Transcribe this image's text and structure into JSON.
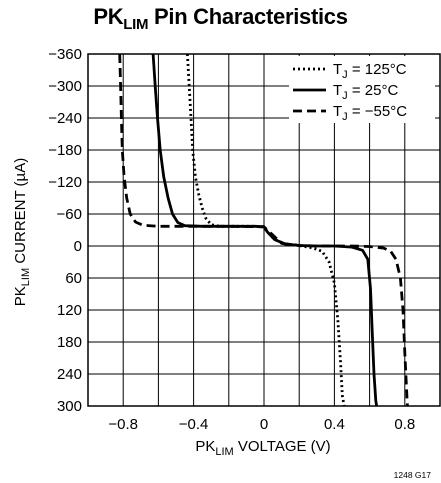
{
  "title": {
    "main": "PK",
    "sub": "LIM",
    "rest": " Pin Characteristics"
  },
  "ylabel": {
    "pre": "PK",
    "sub": "LIM",
    "post": " CURRENT (µA)"
  },
  "xlabel": {
    "pre": "PK",
    "sub": "LIM",
    "post": " VOLTAGE (V)"
  },
  "figure_code": "1248 G17",
  "chart_data": {
    "type": "line",
    "title": "PKLIM Pin Characteristics",
    "xlabel": "PKLIM VOLTAGE (V)",
    "ylabel": "PKLIM CURRENT (µA)",
    "xlim": [
      -1.0,
      1.0
    ],
    "ylim": [
      -360,
      300
    ],
    "y_inverted": true,
    "grid": true,
    "legend_position": "top-right",
    "x_ticks": [
      -0.8,
      -0.4,
      0,
      0.4,
      0.8
    ],
    "x_tick_labels": [
      "−0.8",
      "−0.4",
      "0",
      "0.4",
      "0.8"
    ],
    "y_ticks": [
      -360,
      -300,
      -240,
      -180,
      -120,
      -60,
      0,
      60,
      120,
      180,
      240,
      300
    ],
    "y_tick_labels": [
      "−360",
      "−300",
      "−240",
      "−180",
      "−120",
      "−60",
      "0",
      "60",
      "120",
      "180",
      "240",
      "300"
    ],
    "series": [
      {
        "name": "TJ = 125°C",
        "label_pre": "T",
        "label_sub": "J",
        "label_post": " = 125°C",
        "style": "dotted",
        "x": [
          -0.435,
          -0.425,
          -0.415,
          -0.405,
          -0.39,
          -0.37,
          -0.35,
          -0.33,
          -0.3,
          -0.25,
          -0.15,
          -0.05,
          0.0,
          0.02,
          0.06,
          0.12,
          0.2,
          0.28,
          0.33,
          0.37,
          0.4,
          0.42,
          0.435,
          0.445,
          0.455
        ],
        "y": [
          -360,
          -300,
          -240,
          -180,
          -130,
          -95,
          -70,
          -52,
          -40,
          -37,
          -37,
          -37,
          -36,
          -26,
          -12,
          -4,
          -1,
          4,
          10,
          30,
          70,
          140,
          220,
          280,
          300
        ]
      },
      {
        "name": "TJ = 25°C",
        "label_pre": "T",
        "label_sub": "J",
        "label_post": " = 25°C",
        "style": "solid",
        "x": [
          -0.63,
          -0.618,
          -0.605,
          -0.59,
          -0.57,
          -0.545,
          -0.52,
          -0.49,
          -0.45,
          -0.35,
          -0.2,
          -0.05,
          0.0,
          0.02,
          0.06,
          0.12,
          0.2,
          0.3,
          0.4,
          0.5,
          0.56,
          0.59,
          0.605,
          0.615,
          0.625,
          0.635,
          0.64
        ],
        "y": [
          -360,
          -300,
          -240,
          -180,
          -130,
          -90,
          -60,
          -44,
          -38,
          -37,
          -37,
          -37,
          -36,
          -26,
          -12,
          -4,
          -1,
          0,
          0,
          2,
          8,
          25,
          80,
          160,
          240,
          290,
          300
        ]
      },
      {
        "name": "TJ = −55°C",
        "label_pre": "T",
        "label_sub": "J",
        "label_post": " = −55°C",
        "style": "dashed",
        "x": [
          -0.82,
          -0.815,
          -0.81,
          -0.805,
          -0.795,
          -0.78,
          -0.76,
          -0.73,
          -0.69,
          -0.6,
          -0.45,
          -0.2,
          0.0,
          0.1,
          0.2,
          0.3,
          0.4,
          0.5,
          0.6,
          0.68,
          0.72,
          0.75,
          0.775,
          0.79,
          0.8,
          0.81,
          0.815
        ],
        "y": [
          -360,
          -300,
          -240,
          -180,
          -130,
          -90,
          -60,
          -45,
          -39,
          -37,
          -37,
          -37,
          -36,
          -5,
          -1,
          0,
          0,
          0,
          1,
          4,
          10,
          25,
          60,
          120,
          200,
          270,
          300
        ]
      }
    ]
  }
}
